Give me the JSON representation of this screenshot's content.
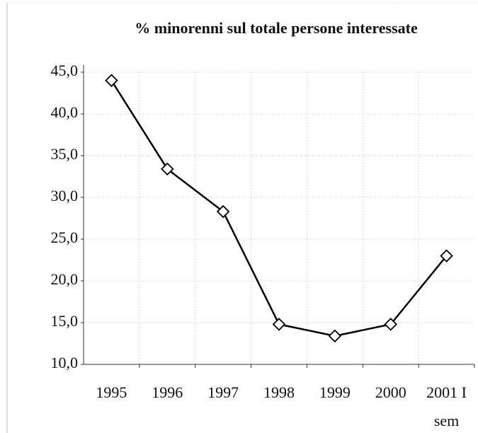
{
  "chart_data": {
    "type": "line",
    "title": "% minorenni sul totale persone interessate",
    "categories": [
      "1995",
      "1996",
      "1997",
      "1998",
      "1999",
      "2000",
      "2001 I sem"
    ],
    "series": [
      {
        "color": "#000000",
        "values": [
          44.0,
          33.4,
          28.3,
          14.8,
          13.4,
          14.8,
          23.0
        ]
      }
    ],
    "ylim": [
      10,
      45
    ],
    "yticks": [
      {
        "value": 10,
        "label": "10,0"
      },
      {
        "value": 15,
        "label": "15,0"
      },
      {
        "value": 20,
        "label": "20,0"
      },
      {
        "value": 25,
        "label": "25,0"
      },
      {
        "value": 30,
        "label": "30,0"
      },
      {
        "value": 35,
        "label": "35,0"
      },
      {
        "value": 40,
        "label": "40,0"
      },
      {
        "value": 45,
        "label": "45,0"
      }
    ],
    "grid": true
  }
}
